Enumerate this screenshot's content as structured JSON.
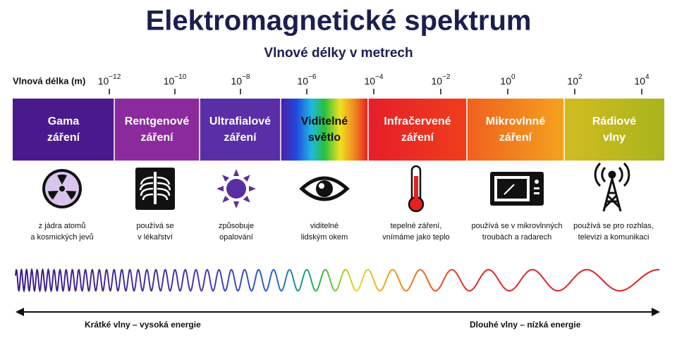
{
  "title": "Elektromagnetické spektrum",
  "subtitle": "Vlnové délky v metrech",
  "axis_label": "Vlnová délka (m)",
  "ticks": [
    {
      "base": "10",
      "exp": "−12"
    },
    {
      "base": "10",
      "exp": "−10"
    },
    {
      "base": "10",
      "exp": "−8"
    },
    {
      "base": "10",
      "exp": "−6"
    },
    {
      "base": "10",
      "exp": "−4"
    },
    {
      "base": "10",
      "exp": "−2"
    },
    {
      "base": "10",
      "exp": "0"
    },
    {
      "base": "10",
      "exp": "2"
    },
    {
      "base": "10",
      "exp": "4"
    }
  ],
  "bands": [
    {
      "label": [
        "Gama",
        "záření"
      ],
      "desc": [
        "z jádra atomů",
        "a kosmických jevů"
      ]
    },
    {
      "label": [
        "Rentgenové",
        "záření"
      ],
      "desc": [
        "používá se",
        "v lékařství"
      ]
    },
    {
      "label": [
        "Ultrafialové",
        "záření"
      ],
      "desc": [
        "způsobuje",
        "opalování"
      ]
    },
    {
      "label": [
        "Viditelné",
        "světlo"
      ],
      "desc": [
        "viditelné",
        "lidským okem"
      ]
    },
    {
      "label": [
        "Infračervené",
        "záření"
      ],
      "desc": [
        "tepelné záření,",
        "vnímáme jako teplo"
      ]
    },
    {
      "label": [
        "Mikrovlnné",
        "záření"
      ],
      "desc": [
        "používá se v mikrovlnných",
        "troubách a radarech"
      ]
    },
    {
      "label": [
        "Rádiové",
        "vlny"
      ],
      "desc": [
        "používá se pro rozhlas,",
        "televizi a komunikaci"
      ]
    }
  ],
  "left_label": "Krátké vlny – vysoká energie",
  "right_label": "Dlouhé vlny – nízká energie"
}
